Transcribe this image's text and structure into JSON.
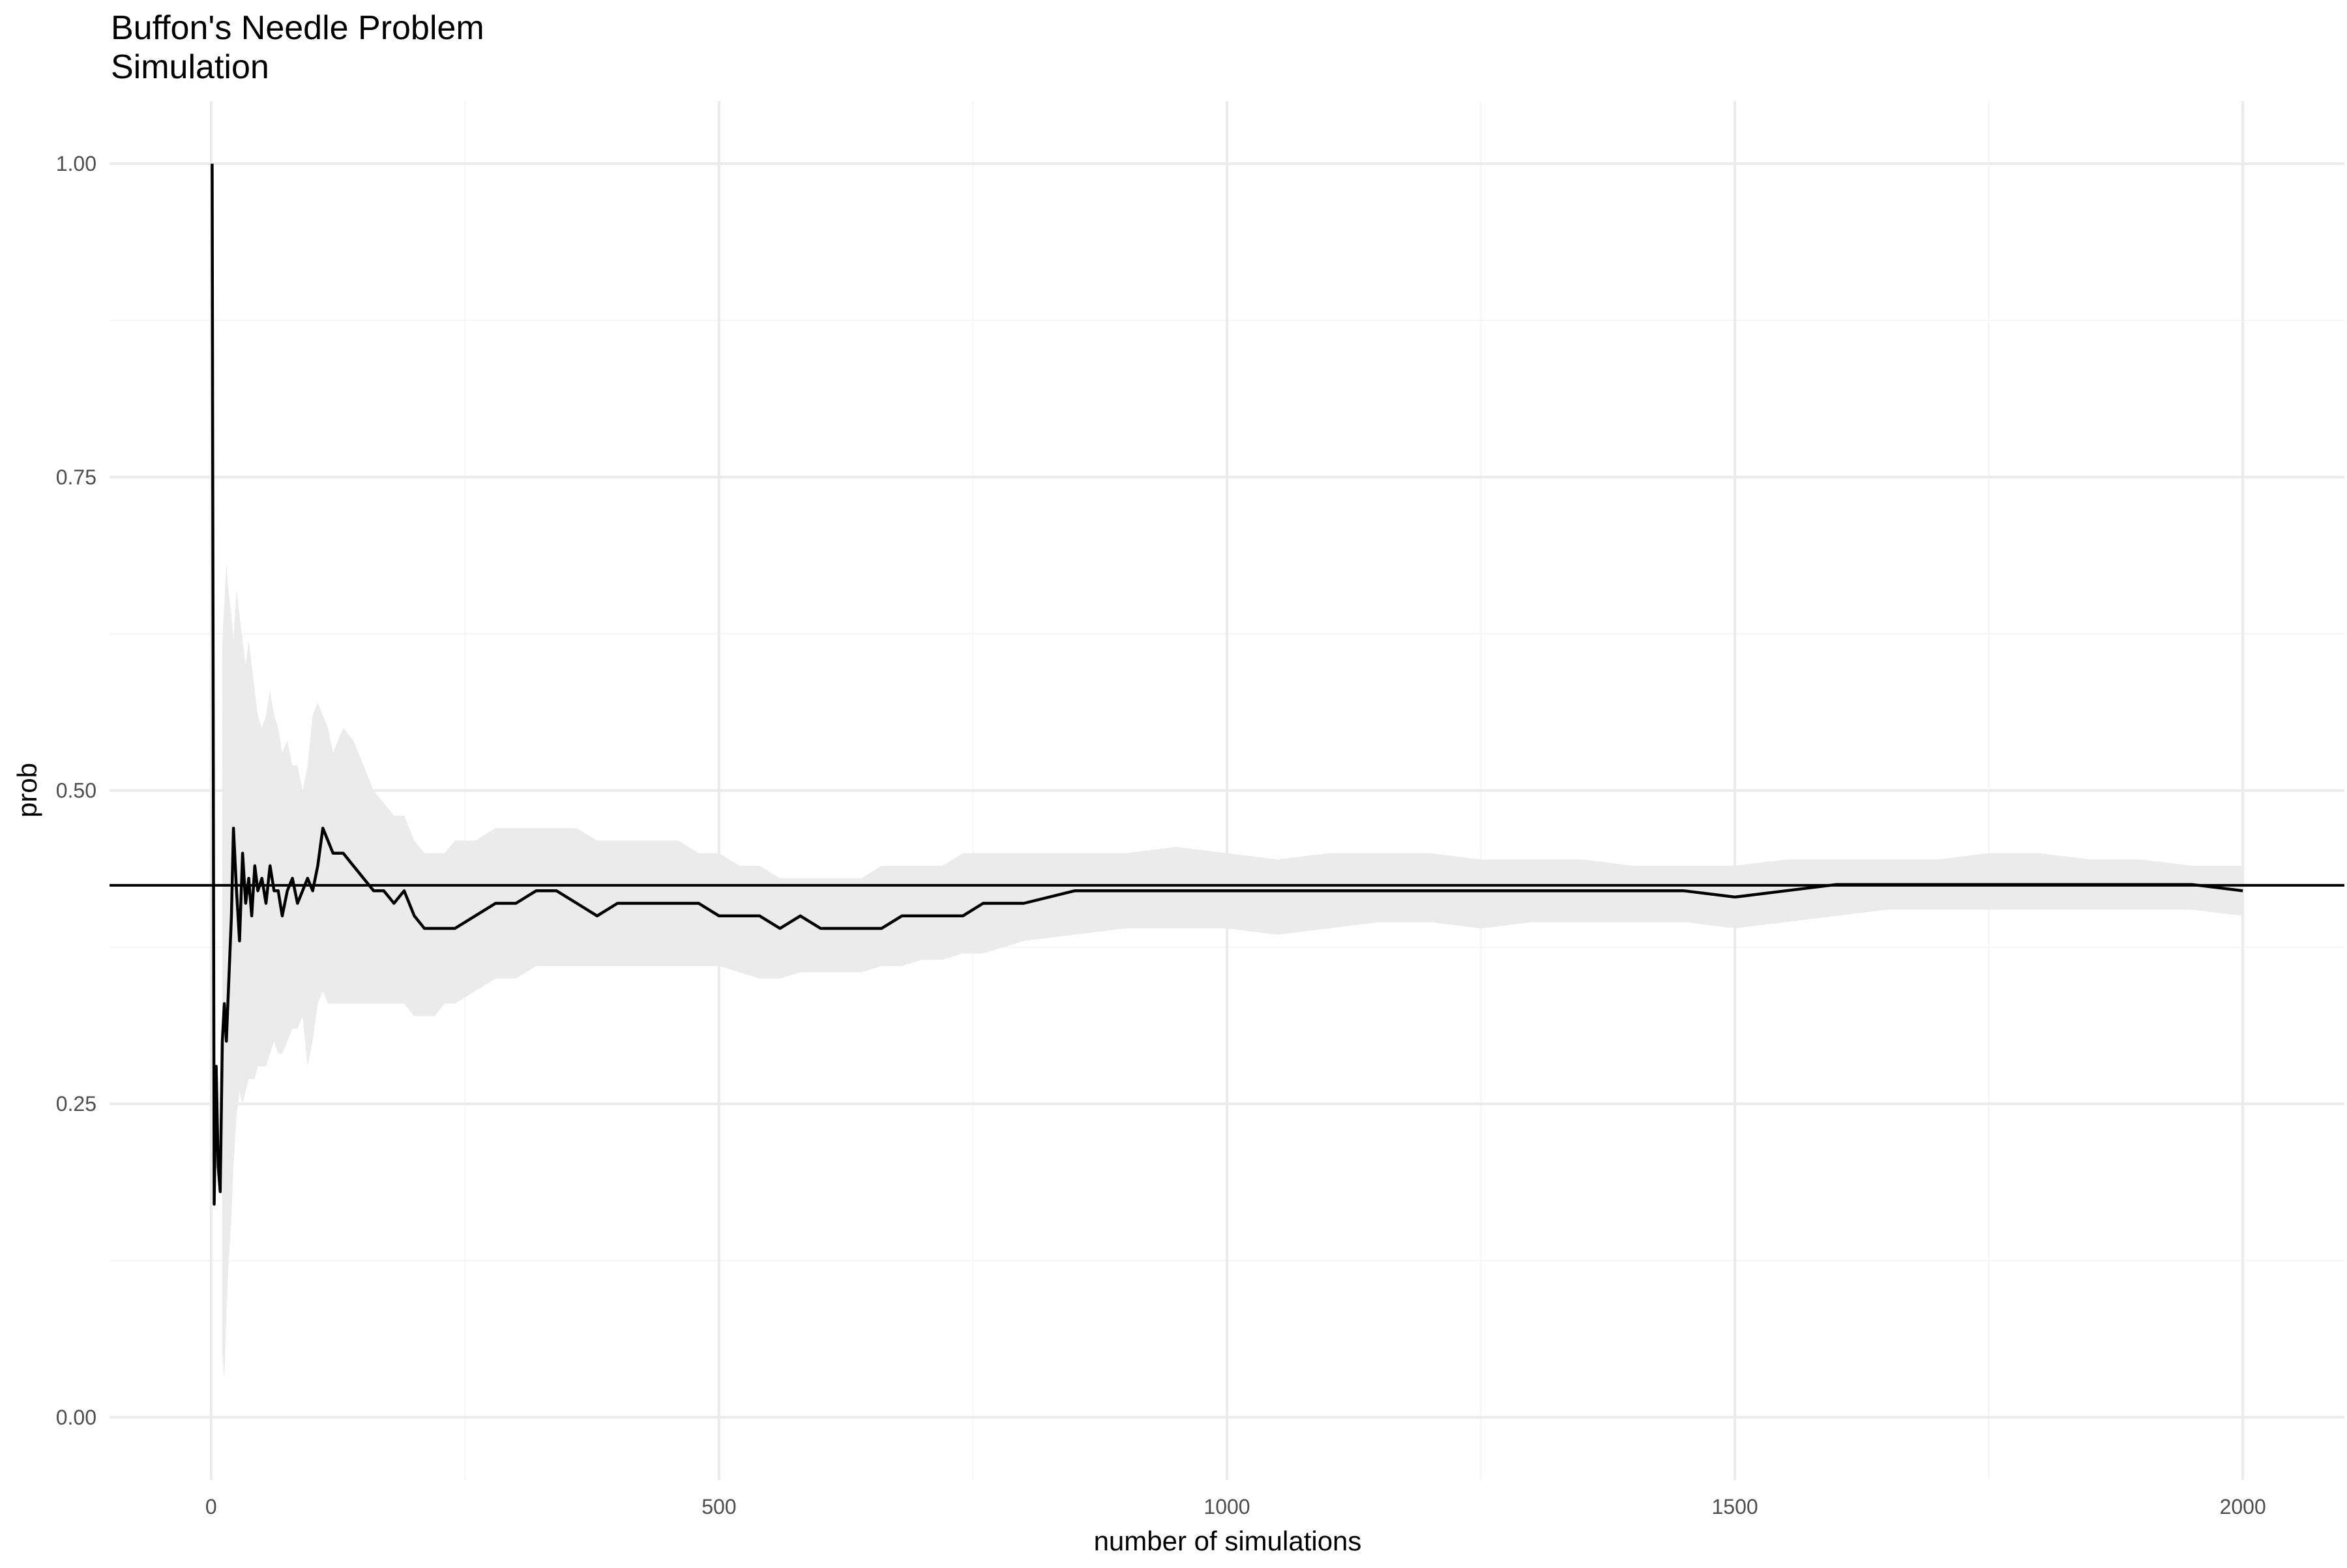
{
  "chart_data": {
    "type": "line",
    "title": "Buffon's Needle Problem",
    "subtitle": "Simulation",
    "xlabel": "number of simulations",
    "ylabel": "prob",
    "xlim": [
      -100,
      2100
    ],
    "ylim": [
      -0.05,
      1.05
    ],
    "x_ticks": [
      0,
      500,
      1000,
      1500,
      2000
    ],
    "x_tick_labels": [
      "0",
      "500",
      "1000",
      "1500",
      "2000"
    ],
    "y_ticks": [
      0,
      0.25,
      0.5,
      0.75,
      1.0
    ],
    "y_tick_labels": [
      "0.00",
      "0.25",
      "0.50",
      "0.75",
      "1.00"
    ],
    "grid": true,
    "reference_line": {
      "y": 0.4244
    },
    "colors": {
      "line": "#000000",
      "band": "#ebebeb",
      "grid_major": "#ebebeb",
      "grid_minor": "#f5f5f5"
    },
    "series": [
      {
        "x": [
          1,
          3,
          5,
          7,
          9,
          11,
          13,
          15,
          17,
          20,
          22,
          25,
          28,
          31,
          34,
          37,
          40,
          43,
          46,
          50,
          54,
          58,
          62,
          66,
          70,
          75,
          80,
          85,
          90,
          95,
          100,
          105,
          110,
          115,
          120,
          130,
          140,
          150,
          160,
          170,
          180,
          190,
          200,
          210,
          220,
          230,
          240,
          260,
          280,
          300,
          320,
          340,
          360,
          380,
          400,
          420,
          440,
          460,
          480,
          500,
          520,
          540,
          560,
          580,
          600,
          620,
          640,
          660,
          680,
          700,
          720,
          740,
          760,
          780,
          800,
          850,
          900,
          950,
          1000,
          1050,
          1100,
          1150,
          1200,
          1250,
          1300,
          1350,
          1400,
          1450,
          1500,
          1550,
          1600,
          1650,
          1700,
          1750,
          1800,
          1850,
          1900,
          1950,
          2000
        ],
        "y": [
          1.0,
          0.17,
          0.28,
          0.2,
          0.18,
          0.3,
          0.33,
          0.3,
          0.34,
          0.4,
          0.47,
          0.42,
          0.38,
          0.45,
          0.41,
          0.43,
          0.4,
          0.44,
          0.42,
          0.43,
          0.41,
          0.44,
          0.42,
          0.42,
          0.4,
          0.42,
          0.43,
          0.41,
          0.42,
          0.43,
          0.42,
          0.44,
          0.47,
          0.46,
          0.45,
          0.45,
          0.44,
          0.43,
          0.42,
          0.42,
          0.41,
          0.42,
          0.4,
          0.39,
          0.39,
          0.39,
          0.39,
          0.4,
          0.41,
          0.41,
          0.42,
          0.42,
          0.41,
          0.4,
          0.41,
          0.41,
          0.41,
          0.41,
          0.41,
          0.4,
          0.4,
          0.4,
          0.39,
          0.4,
          0.39,
          0.39,
          0.39,
          0.39,
          0.4,
          0.4,
          0.4,
          0.4,
          0.41,
          0.41,
          0.41,
          0.42,
          0.42,
          0.42,
          0.42,
          0.42,
          0.42,
          0.42,
          0.42,
          0.42,
          0.42,
          0.42,
          0.42,
          0.42,
          0.415,
          0.42,
          0.425,
          0.425,
          0.425,
          0.425,
          0.425,
          0.425,
          0.425,
          0.425,
          0.42
        ],
        "lower": [
          null,
          null,
          null,
          null,
          null,
          0.05,
          0.03,
          0.08,
          0.12,
          0.16,
          0.2,
          0.24,
          0.26,
          0.25,
          0.26,
          0.27,
          0.27,
          0.27,
          0.28,
          0.28,
          0.28,
          0.29,
          0.3,
          0.29,
          0.29,
          0.3,
          0.31,
          0.31,
          0.32,
          0.28,
          0.3,
          0.33,
          0.34,
          0.33,
          0.33,
          0.33,
          0.33,
          0.33,
          0.33,
          0.33,
          0.33,
          0.33,
          0.32,
          0.32,
          0.32,
          0.33,
          0.33,
          0.34,
          0.35,
          0.35,
          0.36,
          0.36,
          0.36,
          0.36,
          0.36,
          0.36,
          0.36,
          0.36,
          0.36,
          0.36,
          0.355,
          0.35,
          0.35,
          0.355,
          0.355,
          0.355,
          0.355,
          0.36,
          0.36,
          0.365,
          0.365,
          0.37,
          0.37,
          0.375,
          0.38,
          0.385,
          0.39,
          0.39,
          0.39,
          0.385,
          0.39,
          0.395,
          0.395,
          0.39,
          0.395,
          0.395,
          0.395,
          0.395,
          0.39,
          0.395,
          0.4,
          0.405,
          0.405,
          0.405,
          0.405,
          0.405,
          0.405,
          0.405,
          0.4
        ],
        "upper": [
          null,
          null,
          null,
          null,
          null,
          0.62,
          0.65,
          0.68,
          0.66,
          0.64,
          0.62,
          0.66,
          0.64,
          0.62,
          0.6,
          0.62,
          0.6,
          0.58,
          0.56,
          0.55,
          0.56,
          0.58,
          0.56,
          0.55,
          0.53,
          0.54,
          0.52,
          0.52,
          0.5,
          0.52,
          0.56,
          0.57,
          0.56,
          0.55,
          0.53,
          0.55,
          0.54,
          0.52,
          0.5,
          0.49,
          0.48,
          0.48,
          0.46,
          0.45,
          0.45,
          0.45,
          0.46,
          0.46,
          0.47,
          0.47,
          0.47,
          0.47,
          0.47,
          0.46,
          0.46,
          0.46,
          0.46,
          0.46,
          0.45,
          0.45,
          0.44,
          0.44,
          0.43,
          0.43,
          0.43,
          0.43,
          0.43,
          0.44,
          0.44,
          0.44,
          0.44,
          0.45,
          0.45,
          0.45,
          0.45,
          0.45,
          0.45,
          0.455,
          0.45,
          0.445,
          0.45,
          0.45,
          0.45,
          0.445,
          0.445,
          0.445,
          0.44,
          0.44,
          0.44,
          0.445,
          0.445,
          0.445,
          0.445,
          0.45,
          0.45,
          0.445,
          0.445,
          0.44,
          0.44
        ]
      }
    ]
  }
}
